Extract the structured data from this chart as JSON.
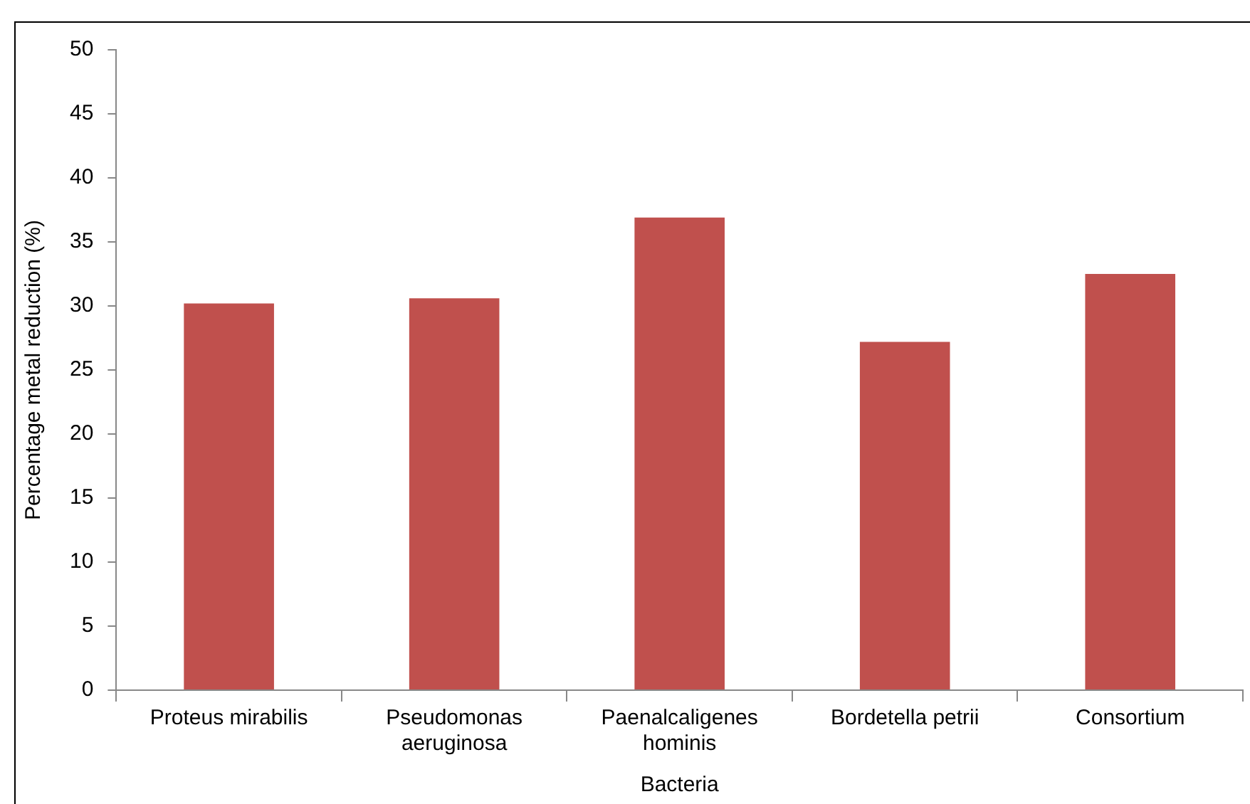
{
  "chart_data": {
    "type": "bar",
    "xlabel": "Bacteria",
    "ylabel": "Percentage metal reduction (%)",
    "categories": [
      "Proteus mirabilis",
      "Pseudomonas aeruginosa",
      "Paenalcaligenes hominis",
      "Bordetella petrii",
      "Consortium"
    ],
    "values": [
      30.2,
      30.6,
      36.9,
      27.2,
      32.5
    ],
    "color": "#c0504d",
    "ylim": [
      0,
      50
    ],
    "yticks": [
      0,
      5,
      10,
      15,
      20,
      25,
      30,
      35,
      40,
      45,
      50
    ],
    "grid": false,
    "legend": false
  }
}
